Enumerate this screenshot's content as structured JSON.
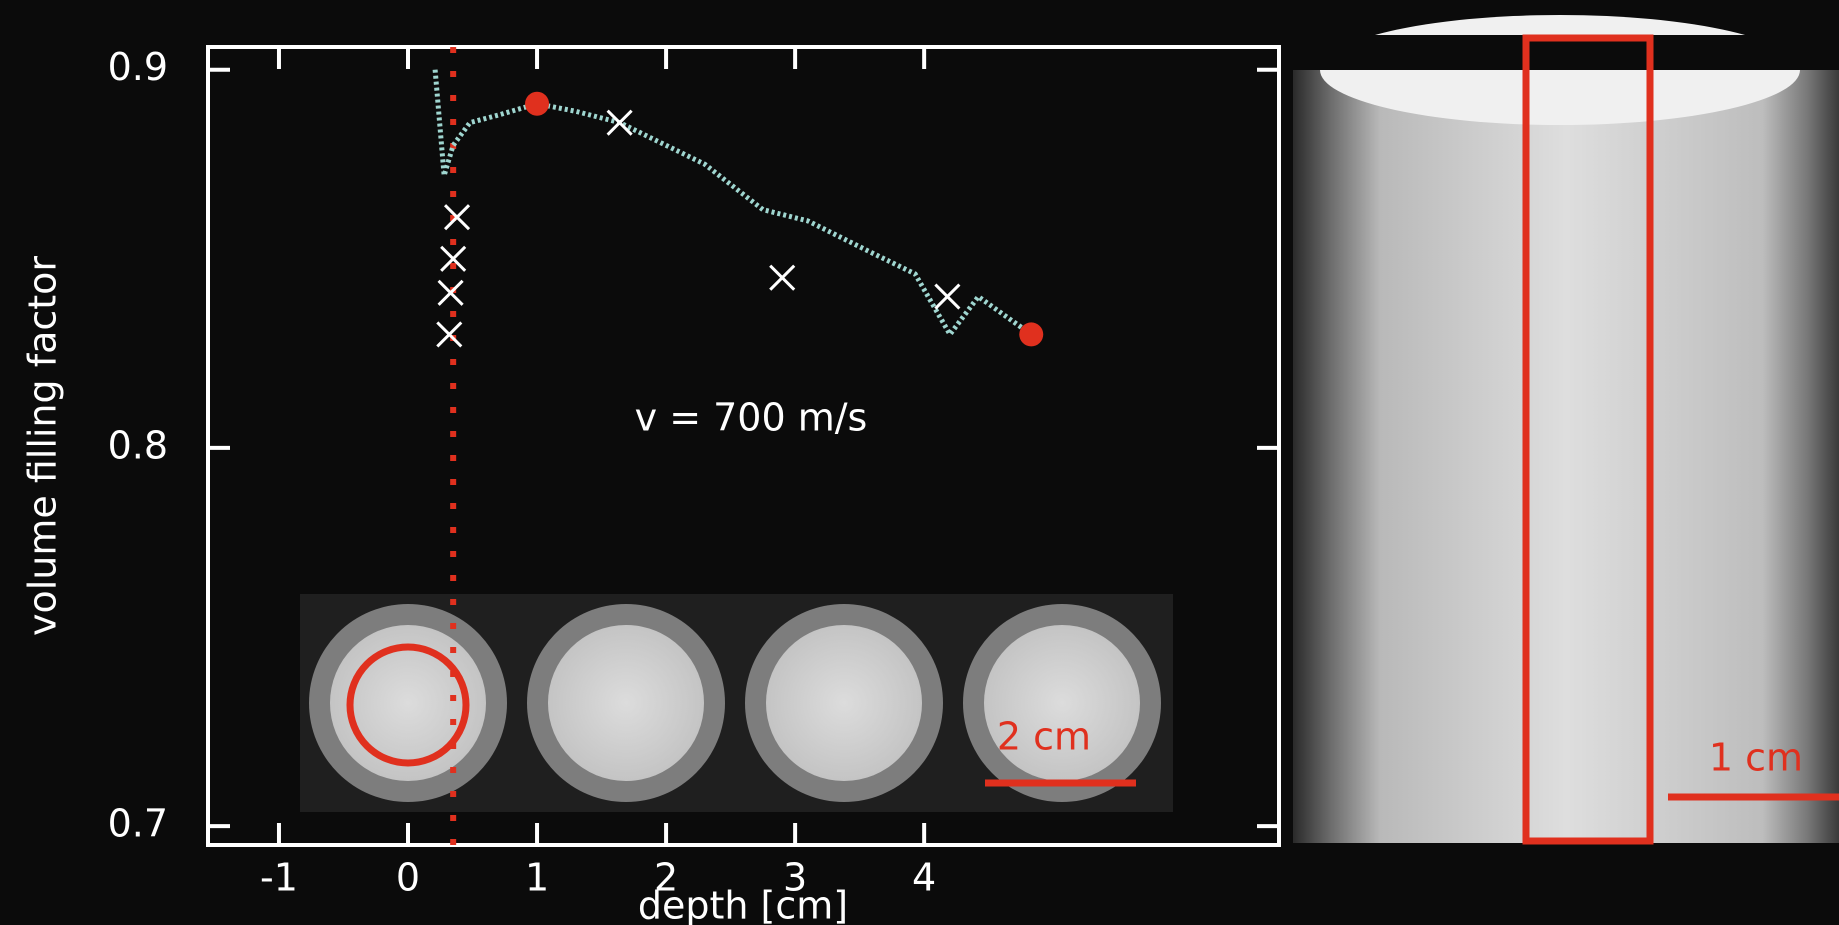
{
  "chart_data": {
    "type": "line",
    "x_label": "depth [cm]",
    "y_label": "volume filling factor",
    "annotations": [
      "v = 700 m/s",
      "2 cm",
      "1 cm"
    ],
    "xlim": [
      -1.55,
      6.75
    ],
    "ylim": [
      0.695,
      0.906
    ],
    "xticks": [
      -1,
      0,
      1,
      2,
      3,
      4
    ],
    "yticks": [
      0.7,
      0.8,
      0.9
    ],
    "vline_x": 0.35,
    "vline_color": "#e0301e",
    "series": [
      {
        "marker": "line",
        "color": "#9fd6d0",
        "x": [
          0.21,
          0.28,
          0.35,
          0.48,
          0.7,
          1.0,
          1.3,
          1.64,
          2.0,
          2.3,
          2.75,
          3.1,
          3.57,
          3.93,
          4.2,
          4.42,
          4.83
        ],
        "values": [
          0.9,
          0.872,
          0.88,
          0.886,
          0.888,
          0.891,
          0.889,
          0.886,
          0.88,
          0.875,
          0.863,
          0.86,
          0.852,
          0.846,
          0.83,
          0.84,
          0.83
        ]
      },
      {
        "marker": "x",
        "color": "#ffffff",
        "x": [
          1.64,
          2.9,
          4.18,
          0.38,
          0.35,
          0.33,
          0.32
        ],
        "values": [
          0.886,
          0.845,
          0.84,
          0.861,
          0.85,
          0.841,
          0.83
        ]
      },
      {
        "marker": "o",
        "color": "#e0301e",
        "x": [
          1.0,
          4.83
        ],
        "values": [
          0.891,
          0.83
        ]
      }
    ]
  }
}
